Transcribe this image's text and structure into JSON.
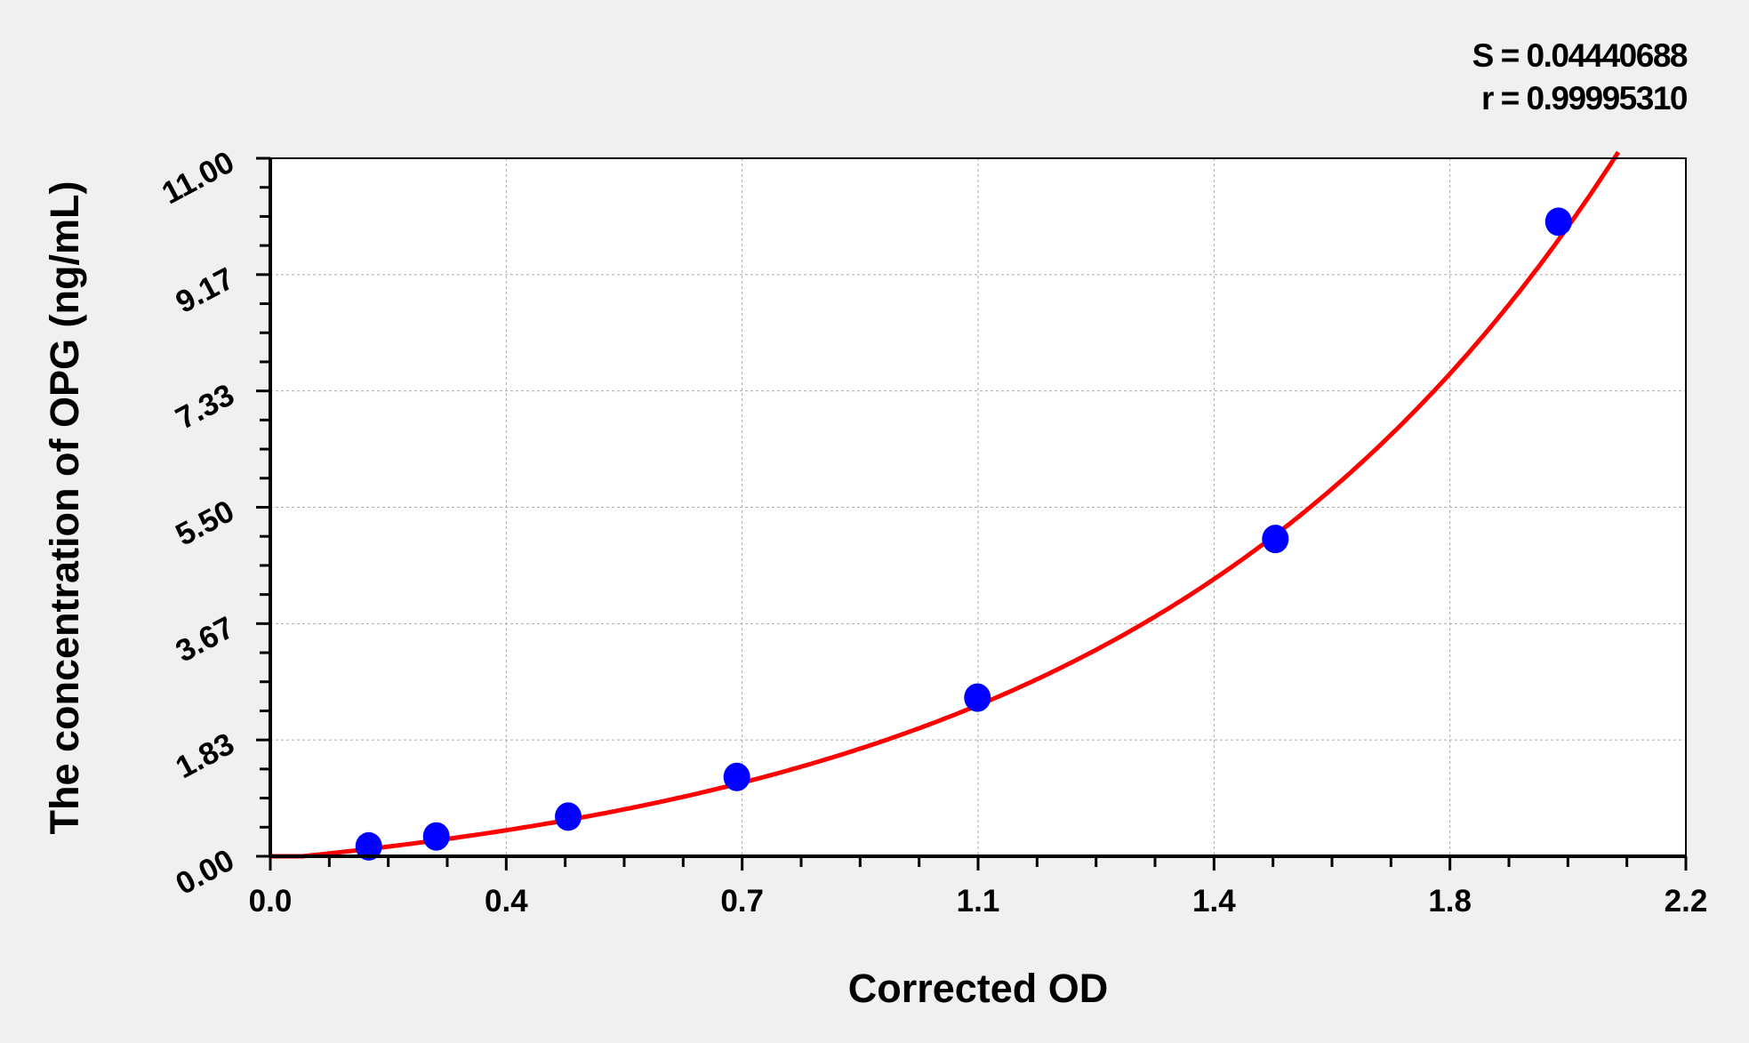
{
  "chart_data": {
    "type": "scatter",
    "title": "",
    "xlabel": "Corrected OD",
    "ylabel": "The concentration of OPG (ng/mL)",
    "xlim": [
      0,
      2.2
    ],
    "ylim": [
      0,
      11
    ],
    "x_tick_labels": [
      "0.0",
      "0.4",
      "0.7",
      "1.1",
      "1.4",
      "1.8",
      "2.2"
    ],
    "y_tick_labels": [
      "0.00",
      "1.83",
      "3.67",
      "5.50",
      "7.33",
      "9.17",
      "11.00"
    ],
    "grid": true,
    "series": [
      {
        "type": "scatter",
        "color": "#0000ff",
        "points": [
          {
            "x": 0.153,
            "y": 0.156
          },
          {
            "x": 0.258,
            "y": 0.3125
          },
          {
            "x": 0.463,
            "y": 0.625
          },
          {
            "x": 0.725,
            "y": 1.25
          },
          {
            "x": 1.099,
            "y": 2.5
          },
          {
            "x": 1.562,
            "y": 5.0
          },
          {
            "x": 2.002,
            "y": 10.0
          }
        ]
      },
      {
        "type": "line",
        "color": "#ff0000"
      }
    ],
    "annotations": {
      "s": "S = 0.04440688",
      "r": "r = 0.99995310"
    }
  }
}
